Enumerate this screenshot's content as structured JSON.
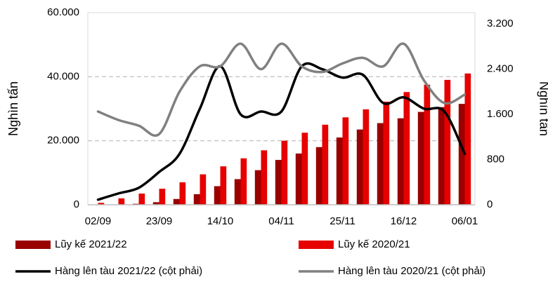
{
  "chart_data": {
    "type": "bar",
    "y_label": "Nghìn tấn",
    "y2_label": "Nghìn tấn",
    "categories": [
      "02/09",
      null,
      null,
      "23/09",
      null,
      null,
      "14/10",
      null,
      null,
      "04/11",
      null,
      null,
      "25/11",
      null,
      null,
      "16/12",
      null,
      null,
      "06/01"
    ],
    "ylim": [
      0,
      60000
    ],
    "yticks": [
      0,
      {
        "value": 20000,
        "label": "20.000"
      },
      {
        "value": 40000,
        "label": "40.000"
      },
      {
        "value": 60000,
        "label": "60.000"
      }
    ],
    "y2lim": [
      0,
      3400
    ],
    "y2ticks": [
      0,
      800,
      {
        "value": 1600,
        "label": "1.600"
      },
      {
        "value": 2400,
        "label": "2.400"
      },
      {
        "value": 3200,
        "label": "3.200"
      }
    ],
    "grid": true,
    "series": [
      {
        "name": "Lũy kế 2021/22",
        "type": "bar",
        "color": "#990000",
        "values": [
          0,
          0,
          300,
          800,
          1800,
          3300,
          5800,
          8000,
          10800,
          14000,
          16000,
          18000,
          21000,
          23500,
          25500,
          27000,
          29000,
          30500,
          31500
        ]
      },
      {
        "name": "Lũy kế 2020/21",
        "type": "bar",
        "color": "#e60000",
        "values": [
          600,
          2000,
          3500,
          5000,
          7000,
          9500,
          12000,
          14500,
          17000,
          20000,
          22500,
          25000,
          27300,
          29800,
          32200,
          35200,
          37500,
          39000,
          41000
        ]
      },
      {
        "name": "Hàng lên tàu 2021/22 (cột phải)",
        "type": "line",
        "axis": "y2",
        "color": "#000000",
        "values": [
          90,
          200,
          300,
          580,
          900,
          1700,
          2450,
          1600,
          1650,
          1650,
          2450,
          2400,
          2250,
          2300,
          1800,
          1900,
          1700,
          1650,
          900
        ]
      },
      {
        "name": "Hàng lên tàu 2020/21 (cột phải)",
        "type": "line",
        "axis": "y2",
        "color": "#808080",
        "values": [
          1650,
          1500,
          1400,
          1250,
          2000,
          2450,
          2450,
          2850,
          2400,
          2850,
          2450,
          2350,
          2500,
          2600,
          2450,
          2850,
          2200,
          1800,
          1950
        ]
      }
    ]
  }
}
